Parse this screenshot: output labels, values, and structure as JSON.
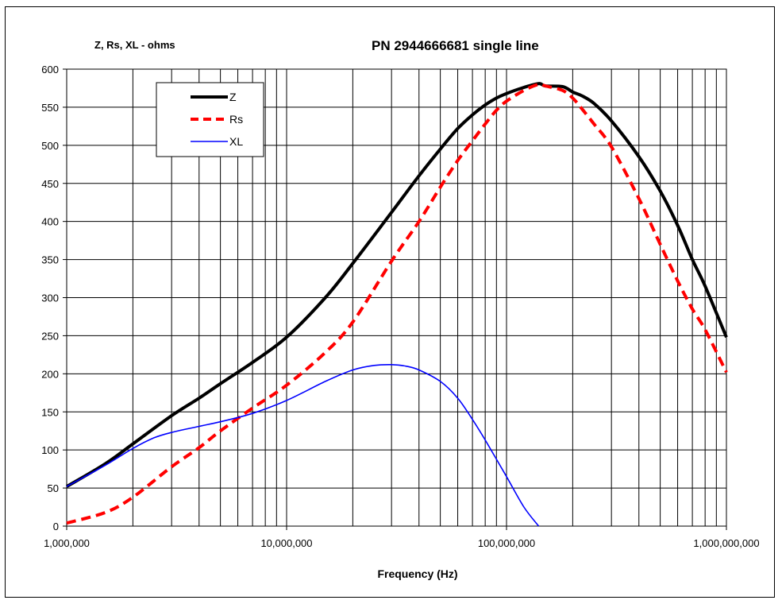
{
  "chart_data": {
    "type": "line",
    "title": "PN 2944666681  single line",
    "ylabel": "Z, Rs, XL - ohms",
    "xlabel": "Frequency (Hz)",
    "x_scale": "log",
    "xlim": [
      1000000,
      1000000000
    ],
    "ylim": [
      0,
      600
    ],
    "x_ticks": [
      {
        "value": 1000000,
        "label": "1,000,000"
      },
      {
        "value": 10000000,
        "label": "10,000,000"
      },
      {
        "value": 100000000,
        "label": "100,000,000"
      },
      {
        "value": 1000000000,
        "label": "1,000,000,000"
      }
    ],
    "y_ticks": [
      0,
      50,
      100,
      150,
      200,
      250,
      300,
      350,
      400,
      450,
      500,
      550,
      600
    ],
    "grid": true,
    "legend_position": "top-left",
    "series": [
      {
        "name": "Z",
        "color": "#000000",
        "style": "solid-thick",
        "x": [
          1000000,
          1500000,
          2000000,
          3000000,
          4000000,
          5000000,
          7000000,
          10000000,
          15000000,
          20000000,
          30000000,
          40000000,
          50000000,
          60000000,
          70000000,
          80000000,
          90000000,
          100000000,
          120000000,
          140000000,
          150000000,
          180000000,
          200000000,
          220000000,
          250000000,
          300000000,
          400000000,
          500000000,
          600000000,
          700000000,
          800000000,
          1000000000
        ],
        "values": [
          52,
          82,
          108,
          145,
          168,
          187,
          215,
          248,
          300,
          345,
          412,
          460,
          495,
          522,
          540,
          553,
          562,
          568,
          576,
          581,
          578,
          577,
          570,
          565,
          555,
          532,
          485,
          440,
          395,
          350,
          315,
          248
        ]
      },
      {
        "name": "Rs",
        "color": "#ff0000",
        "style": "dashed-thick",
        "x": [
          1000000,
          1500000,
          2000000,
          3000000,
          4000000,
          5000000,
          7000000,
          10000000,
          15000000,
          20000000,
          30000000,
          40000000,
          50000000,
          60000000,
          70000000,
          80000000,
          90000000,
          100000000,
          120000000,
          140000000,
          150000000,
          180000000,
          200000000,
          220000000,
          250000000,
          300000000,
          400000000,
          500000000,
          600000000,
          700000000,
          800000000,
          1000000000
        ],
        "values": [
          4,
          18,
          38,
          78,
          103,
          125,
          155,
          185,
          228,
          268,
          348,
          400,
          445,
          480,
          506,
          528,
          546,
          558,
          572,
          580,
          578,
          572,
          562,
          548,
          528,
          498,
          430,
          370,
          322,
          285,
          258,
          202
        ]
      },
      {
        "name": "XL",
        "color": "#0000ff",
        "style": "solid-thin",
        "x": [
          1000000,
          1500000,
          2000000,
          2500000,
          3000000,
          4000000,
          5000000,
          7000000,
          10000000,
          15000000,
          20000000,
          25000000,
          30000000,
          35000000,
          40000000,
          50000000,
          60000000,
          70000000,
          80000000,
          100000000,
          120000000,
          140000000
        ],
        "values": [
          52,
          80,
          102,
          116,
          123,
          131,
          137,
          148,
          165,
          190,
          205,
          211,
          212,
          210,
          205,
          190,
          168,
          140,
          113,
          65,
          25,
          0
        ]
      }
    ]
  }
}
